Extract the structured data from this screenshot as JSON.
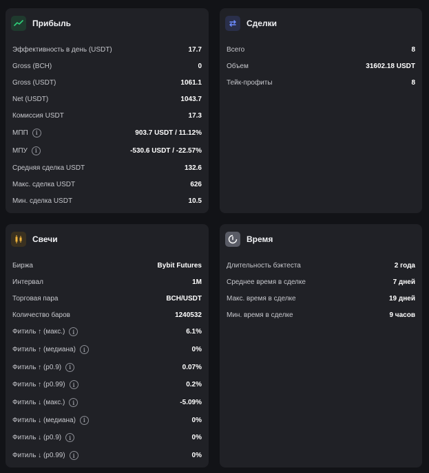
{
  "profit": {
    "title": "Прибыль",
    "icon": "chart-up-icon",
    "rows": [
      {
        "label": "Эффективность в день (USDT)",
        "value": "17.7"
      },
      {
        "label": "Gross (BCH)",
        "value": "0"
      },
      {
        "label": "Gross (USDT)",
        "value": "1061.1"
      },
      {
        "label": "Net (USDT)",
        "value": "1043.7"
      },
      {
        "label": "Комиссия USDT",
        "value": "17.3"
      },
      {
        "label": "МПП",
        "value": "903.7 USDT / 11.12%",
        "info": true
      },
      {
        "label": "МПУ",
        "value": "-530.6 USDT / -22.57%",
        "info": true
      },
      {
        "label": "Средняя сделка USDT",
        "value": "132.6"
      },
      {
        "label": "Макс. сделка USDT",
        "value": "626"
      },
      {
        "label": "Мин. сделка USDT",
        "value": "10.5"
      }
    ]
  },
  "deals": {
    "title": "Сделки",
    "icon": "swap-arrows-icon",
    "rows": [
      {
        "label": "Всего",
        "value": "8"
      },
      {
        "label": "Объем",
        "value": "31602.18 USDT"
      },
      {
        "label": "Тейк-профиты",
        "value": "8"
      }
    ]
  },
  "candles": {
    "title": "Свечи",
    "icon": "candles-icon",
    "rows": [
      {
        "label": "Биржа",
        "value": "Bybit Futures"
      },
      {
        "label": "Интервал",
        "value": "1M"
      },
      {
        "label": "Торговая пара",
        "value": "BCH/USDT"
      },
      {
        "label": "Количество баров",
        "value": "1240532"
      },
      {
        "label": "Фитиль ↑ (макс.)",
        "value": "6.1%",
        "info": true
      },
      {
        "label": "Фитиль ↑ (медиана)",
        "value": "0%",
        "info": true
      },
      {
        "label": "Фитиль ↑ (p0.9)",
        "value": "0.07%",
        "info": true
      },
      {
        "label": "Фитиль ↑ (p0.99)",
        "value": "0.2%",
        "info": true
      },
      {
        "label": "Фитиль ↓ (макс.)",
        "value": "-5.09%",
        "info": true
      },
      {
        "label": "Фитиль ↓ (медиана)",
        "value": "0%",
        "info": true
      },
      {
        "label": "Фитиль ↓ (p0.9)",
        "value": "0%",
        "info": true
      },
      {
        "label": "Фитиль ↓ (p0.99)",
        "value": "0%",
        "info": true
      }
    ]
  },
  "time": {
    "title": "Время",
    "icon": "clock-icon",
    "rows": [
      {
        "label": "Длительность бэктеста",
        "value": "2 года"
      },
      {
        "label": "Среднее время в сделке",
        "value": "7 дней"
      },
      {
        "label": "Макс. время в сделке",
        "value": "19 дней"
      },
      {
        "label": "Мин. время в сделке",
        "value": "9 часов"
      }
    ]
  },
  "info_glyph": "i",
  "colors": {
    "background": "#121317",
    "card": "#202126",
    "profit_icon_bg": "#1f3a2e",
    "profit_icon": "#2fd07a",
    "deals_icon_bg": "#2a2f4a",
    "deals_icon": "#6d8cff",
    "candles_icon_bg": "#3a3120",
    "candles_icon": "#f0b43c",
    "time_icon_bg": "#5a5c66",
    "time_icon": "#ffffff"
  }
}
